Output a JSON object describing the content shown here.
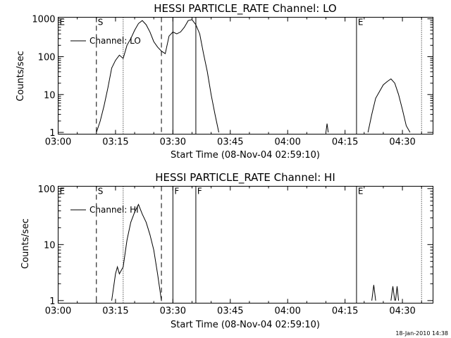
{
  "footer": {
    "timestamp": "18-Jan-2010 14:38"
  },
  "chart_data": [
    {
      "type": "line",
      "title": "HESSI PARTICLE_RATE Channel: LO",
      "xlabel": "Start Time (08-Nov-04 02:59:10)",
      "ylabel": "Counts/sec",
      "yscale": "log",
      "xlim": [
        "03:00",
        "04:38"
      ],
      "ylim": [
        0.9,
        1100
      ],
      "x_ticks": [
        "03:00",
        "03:15",
        "03:30",
        "03:45",
        "04:00",
        "04:15",
        "04:30"
      ],
      "y_ticks": [
        {
          "value": 1,
          "label": "1"
        },
        {
          "value": 10,
          "label": "10"
        },
        {
          "value": 100,
          "label": "100"
        },
        {
          "value": 1000,
          "label": "1000"
        }
      ],
      "legend": {
        "position": "top-left",
        "entries": [
          "Channel: LO"
        ]
      },
      "markers": [
        {
          "time": "03:10",
          "style": "dashed",
          "label": "S"
        },
        {
          "time": "03:17",
          "style": "dotted",
          "label": ""
        },
        {
          "time": "03:27",
          "style": "dashed",
          "label": ""
        },
        {
          "time": "03:30",
          "style": "solid",
          "label": ""
        },
        {
          "time": "03:36",
          "style": "solid",
          "label": ""
        },
        {
          "time": "04:18",
          "style": "solid",
          "label": "E"
        },
        {
          "time": "04:35",
          "style": "dotted",
          "label": ""
        }
      ],
      "corner_labels": [
        {
          "time": "03:00",
          "label": "E"
        }
      ],
      "series": [
        {
          "name": "Channel: LO",
          "segments": [
            [
              [
                "03:10",
                1
              ],
              [
                "03:11",
                2
              ],
              [
                "03:12",
                5
              ],
              [
                "03:13",
                15
              ],
              [
                "03:14",
                50
              ],
              [
                "03:15",
                80
              ],
              [
                "03:16",
                110
              ],
              [
                "03:17",
                90
              ],
              [
                "03:18",
                200
              ],
              [
                "03:19",
                300
              ],
              [
                "03:20",
                500
              ],
              [
                "03:21",
                750
              ],
              [
                "03:22",
                900
              ],
              [
                "03:23",
                700
              ],
              [
                "03:24",
                450
              ],
              [
                "03:25",
                250
              ],
              [
                "03:26",
                180
              ],
              [
                "03:27",
                140
              ],
              [
                "03:28",
                120
              ],
              [
                "03:29",
                350
              ],
              [
                "03:30",
                450
              ],
              [
                "03:31",
                400
              ],
              [
                "03:32",
                450
              ],
              [
                "03:33",
                600
              ],
              [
                "03:34",
                900
              ],
              [
                "03:35",
                950
              ],
              [
                "03:36",
                700
              ],
              [
                "03:37",
                400
              ],
              [
                "03:38",
                120
              ],
              [
                "03:39",
                40
              ],
              [
                "03:40",
                10
              ],
              [
                "03:41",
                3
              ],
              [
                "03:42",
                1
              ]
            ],
            [
              [
                "04:10",
                1
              ],
              [
                "04:10.3",
                1.7
              ],
              [
                "04:10.6",
                1
              ]
            ],
            [
              [
                "04:21",
                1
              ],
              [
                "04:22",
                3
              ],
              [
                "04:23",
                8
              ],
              [
                "04:24",
                12
              ],
              [
                "04:25",
                18
              ],
              [
                "04:26",
                22
              ],
              [
                "04:27",
                26
              ],
              [
                "04:28",
                20
              ],
              [
                "04:29",
                10
              ],
              [
                "04:30",
                4
              ],
              [
                "04:31",
                1.5
              ],
              [
                "04:32",
                1
              ]
            ]
          ]
        }
      ]
    },
    {
      "type": "line",
      "title": "HESSI PARTICLE_RATE Channel: HI",
      "xlabel": "Start Time (08-Nov-04 02:59:10)",
      "ylabel": "Counts/sec",
      "yscale": "log",
      "xlim": [
        "03:00",
        "04:38"
      ],
      "ylim": [
        0.9,
        110
      ],
      "x_ticks": [
        "03:00",
        "03:15",
        "03:30",
        "03:45",
        "04:00",
        "04:15",
        "04:30"
      ],
      "y_ticks": [
        {
          "value": 1,
          "label": "1"
        },
        {
          "value": 10,
          "label": "10"
        },
        {
          "value": 100,
          "label": "100"
        }
      ],
      "legend": {
        "position": "top-left",
        "entries": [
          "Channel: HI"
        ]
      },
      "markers": [
        {
          "time": "03:10",
          "style": "dashed",
          "label": "S"
        },
        {
          "time": "03:17",
          "style": "dotted",
          "label": ""
        },
        {
          "time": "03:27",
          "style": "dashed",
          "label": ""
        },
        {
          "time": "03:30",
          "style": "solid",
          "label": "F"
        },
        {
          "time": "03:36",
          "style": "solid",
          "label": "F"
        },
        {
          "time": "04:18",
          "style": "solid",
          "label": "E"
        },
        {
          "time": "04:35",
          "style": "dotted",
          "label": ""
        }
      ],
      "corner_labels": [
        {
          "time": "03:00",
          "label": "E"
        }
      ],
      "series": [
        {
          "name": "Channel: HI",
          "segments": [
            [
              [
                "03:14",
                1
              ],
              [
                "03:15",
                3
              ],
              [
                "03:15.5",
                4
              ],
              [
                "03:16",
                3
              ],
              [
                "03:17",
                4
              ],
              [
                "03:18",
                12
              ],
              [
                "03:19",
                25
              ],
              [
                "03:20",
                38
              ],
              [
                "03:21",
                52
              ],
              [
                "03:22",
                35
              ],
              [
                "03:23",
                25
              ],
              [
                "03:24",
                15
              ],
              [
                "03:25",
                8
              ],
              [
                "03:26",
                3
              ],
              [
                "03:27",
                1
              ]
            ],
            [
              [
                "04:22",
                1
              ],
              [
                "04:22.5",
                1.9
              ],
              [
                "04:23",
                1
              ]
            ],
            [
              [
                "04:27",
                1
              ],
              [
                "04:27.5",
                1.8
              ],
              [
                "04:28",
                1
              ]
            ],
            [
              [
                "04:28.2",
                1
              ],
              [
                "04:28.6",
                1.8
              ],
              [
                "04:29",
                1
              ]
            ]
          ]
        }
      ]
    }
  ]
}
